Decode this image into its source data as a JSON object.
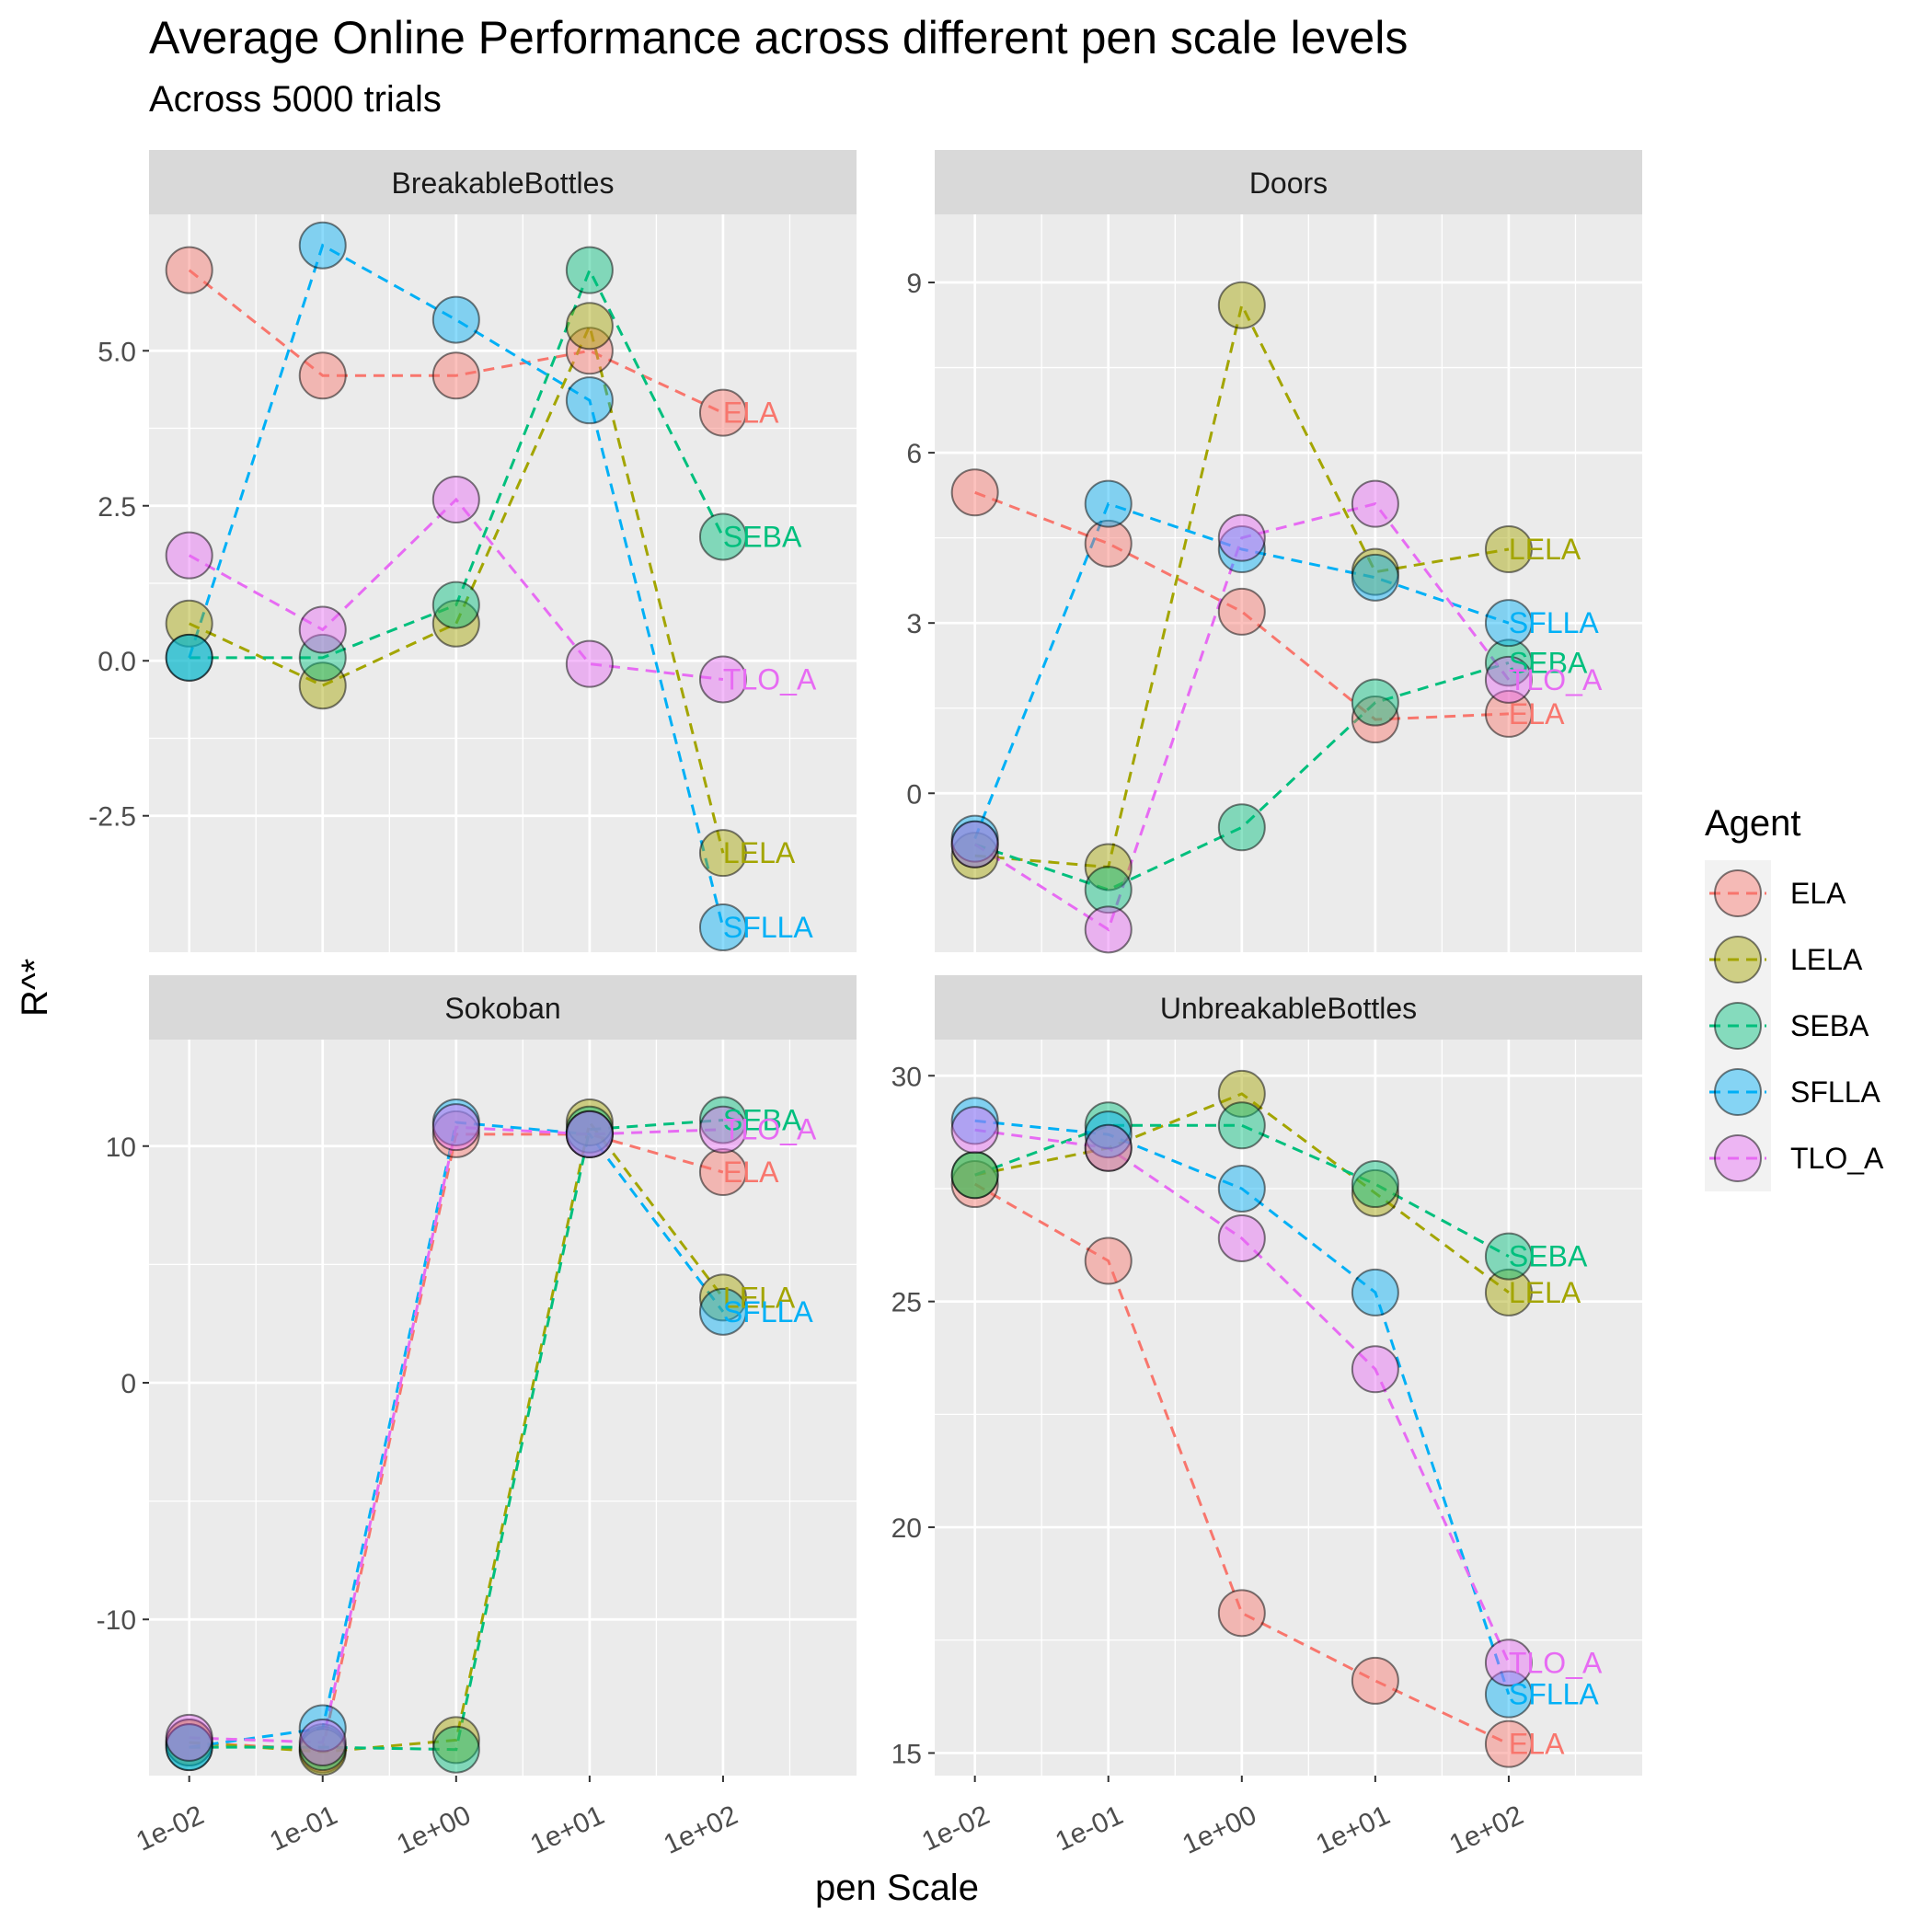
{
  "title": "Average Online Performance across different pen scale levels",
  "subtitle": "Across 5000 trials",
  "xlabel": "pen Scale",
  "ylabel": "R^*",
  "legend": {
    "title": "Agent",
    "entries": [
      {
        "name": "ELA",
        "color": "#F8766D"
      },
      {
        "name": "LELA",
        "color": "#A3A500"
      },
      {
        "name": "SEBA",
        "color": "#00BF7D"
      },
      {
        "name": "SFLLA",
        "color": "#00B0F6"
      },
      {
        "name": "TLO_A",
        "color": "#E76BF3"
      }
    ]
  },
  "chart_data": {
    "type": "line",
    "x_scale": "log10",
    "x": [
      0.01,
      0.1,
      1,
      10,
      100
    ],
    "x_tick_labels": [
      "1e-02",
      "1e-01",
      "1e+00",
      "1e+01",
      "1e+02"
    ],
    "xlim": [
      0.005,
      1000
    ],
    "grid": true,
    "legend_position": "right",
    "panels": [
      {
        "title": "BreakableBottles",
        "ylim": [
          -4.7,
          7.2
        ],
        "y_ticks": [
          -2.5,
          0,
          2.5,
          5
        ],
        "y_tick_labels": [
          "-2.5",
          "0.0",
          "2.5",
          "5.0"
        ],
        "series": [
          {
            "name": "ELA",
            "values": [
              6.3,
              4.6,
              4.6,
              5.0,
              4.0
            ]
          },
          {
            "name": "LELA",
            "values": [
              0.6,
              -0.4,
              0.6,
              5.4,
              -3.1
            ]
          },
          {
            "name": "SEBA",
            "values": [
              0.05,
              0.05,
              0.9,
              6.3,
              2.0
            ]
          },
          {
            "name": "SFLLA",
            "values": [
              0.05,
              6.7,
              5.5,
              4.2,
              -4.3
            ]
          },
          {
            "name": "TLO_A",
            "values": [
              1.7,
              0.5,
              2.6,
              -0.05,
              -0.3
            ]
          }
        ]
      },
      {
        "title": "Doors",
        "ylim": [
          -2.8,
          10.2
        ],
        "y_ticks": [
          0,
          3,
          6,
          9
        ],
        "y_tick_labels": [
          "0",
          "3",
          "6",
          "9"
        ],
        "series": [
          {
            "name": "ELA",
            "values": [
              5.3,
              4.4,
              3.2,
              1.3,
              1.4
            ]
          },
          {
            "name": "LELA",
            "values": [
              -1.1,
              -1.3,
              8.6,
              3.9,
              4.3
            ]
          },
          {
            "name": "SEBA",
            "values": [
              -0.9,
              -1.7,
              -0.6,
              1.6,
              2.3
            ]
          },
          {
            "name": "SFLLA",
            "values": [
              -0.8,
              5.1,
              4.3,
              3.8,
              3.0
            ]
          },
          {
            "name": "TLO_A",
            "values": [
              -0.9,
              -2.4,
              4.5,
              5.1,
              2.0
            ]
          }
        ]
      },
      {
        "title": "Sokoban",
        "ylim": [
          -16.6,
          14.5
        ],
        "y_ticks": [
          -10,
          0,
          10
        ],
        "y_tick_labels": [
          "-10",
          "0",
          "10"
        ],
        "series": [
          {
            "name": "ELA",
            "values": [
              -15.2,
              -15.5,
              10.5,
              10.5,
              8.9
            ]
          },
          {
            "name": "LELA",
            "values": [
              -15.2,
              -15.6,
              -15.1,
              11.0,
              3.6
            ]
          },
          {
            "name": "SEBA",
            "values": [
              -15.4,
              -15.4,
              -15.5,
              10.7,
              11.1
            ]
          },
          {
            "name": "SFLLA",
            "values": [
              -15.4,
              -14.6,
              11.0,
              10.5,
              3.0
            ]
          },
          {
            "name": "TLO_A",
            "values": [
              -15.0,
              -15.2,
              10.8,
              10.5,
              10.7
            ]
          }
        ]
      },
      {
        "title": "UnbreakableBottles",
        "ylim": [
          14.5,
          30.8
        ],
        "y_ticks": [
          15,
          20,
          25,
          30
        ],
        "y_tick_labels": [
          "15",
          "20",
          "25",
          "30"
        ],
        "series": [
          {
            "name": "ELA",
            "values": [
              27.6,
              25.9,
              18.1,
              16.6,
              15.2
            ]
          },
          {
            "name": "LELA",
            "values": [
              27.8,
              28.4,
              29.6,
              27.4,
              25.2
            ]
          },
          {
            "name": "SEBA",
            "values": [
              27.8,
              28.9,
              28.9,
              27.6,
              26.0
            ]
          },
          {
            "name": "SFLLA",
            "values": [
              29.0,
              28.7,
              27.5,
              25.2,
              16.3
            ]
          },
          {
            "name": "TLO_A",
            "values": [
              28.8,
              28.4,
              26.4,
              23.5,
              17.0
            ]
          }
        ]
      }
    ]
  }
}
